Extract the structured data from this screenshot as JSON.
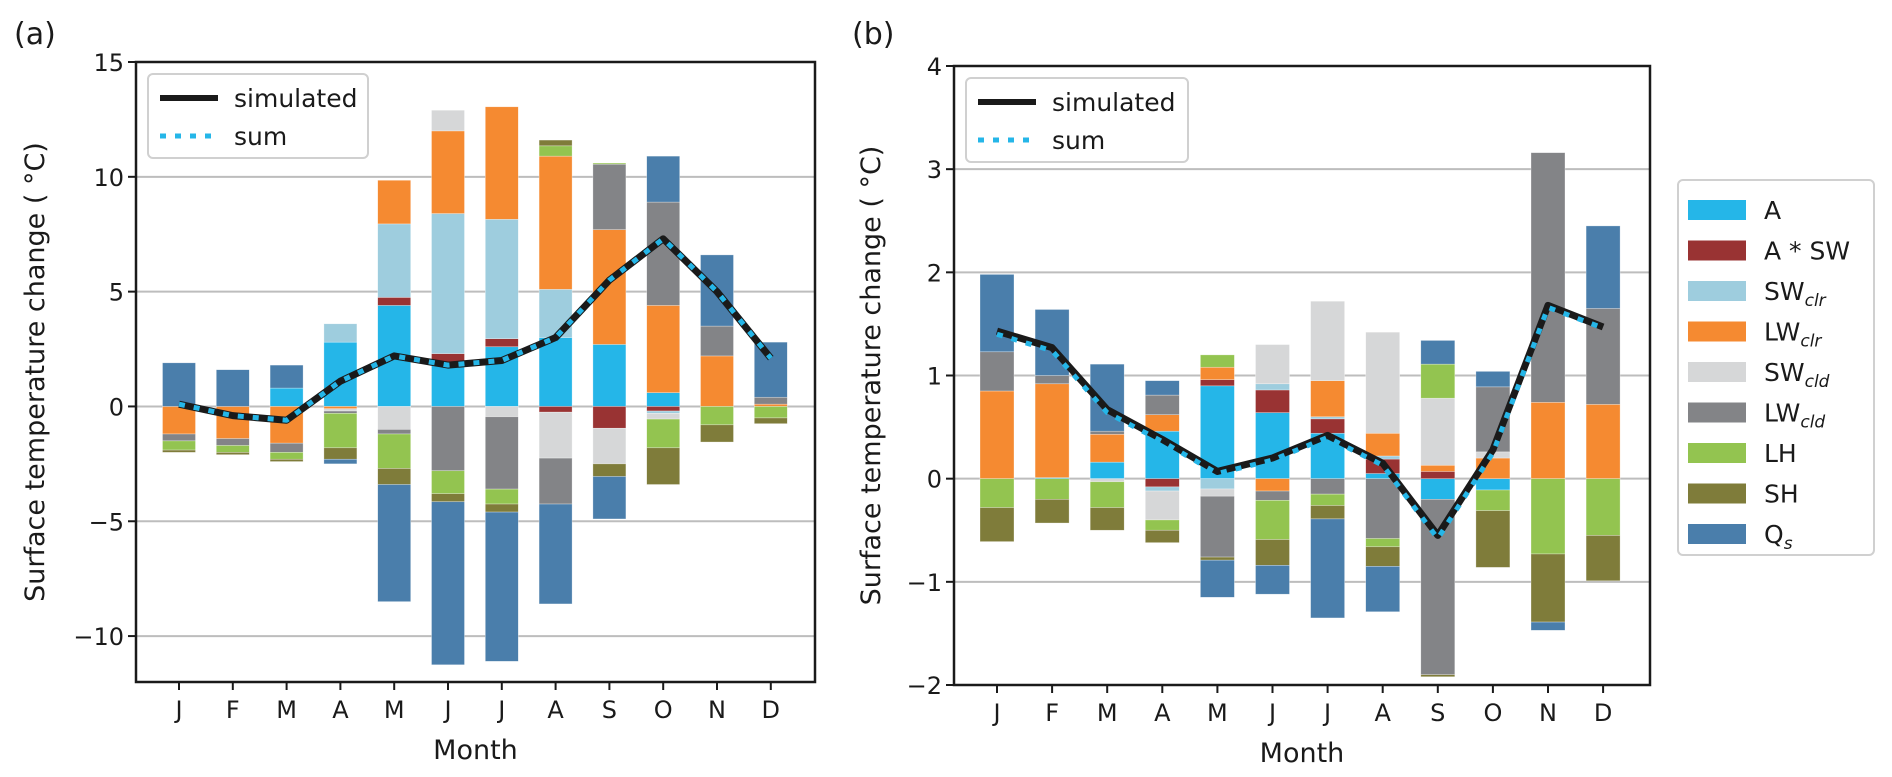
{
  "chart_data": [
    {
      "type": "bar",
      "stacked": true,
      "panel_label": "(a)",
      "xlabel": "Month",
      "ylabel": "Surface temperature change ( °C)",
      "ylim": [
        -12,
        15
      ],
      "yticks": [
        -10,
        -5,
        0,
        5,
        10,
        15
      ],
      "ytick_labels": [
        "−10",
        "−5",
        "0",
        "5",
        "10",
        "15"
      ],
      "grid": "horizontal",
      "categories": [
        "J",
        "F",
        "M",
        "A",
        "M",
        "J",
        "J",
        "A",
        "S",
        "O",
        "N",
        "D"
      ],
      "line_legend": {
        "placement": "top-left",
        "entries": [
          "simulated",
          "sum"
        ]
      },
      "series": [
        {
          "name": "A",
          "values": [
            0,
            0,
            0.8,
            2.8,
            4.4,
            1.9,
            2.6,
            3.0,
            2.7,
            0.6,
            0,
            0
          ]
        },
        {
          "name": "A * SW",
          "values": [
            0,
            0,
            0,
            0,
            0.35,
            0.4,
            0.35,
            -0.25,
            -0.95,
            -0.2,
            0,
            0
          ]
        },
        {
          "name": "SWclr",
          "values": [
            0,
            0,
            0,
            0.8,
            3.2,
            6.1,
            5.2,
            2.1,
            0,
            -0.1,
            0,
            0
          ]
        },
        {
          "name": "LWclr",
          "values": [
            -1.2,
            -1.4,
            -1.6,
            -0.1,
            1.9,
            3.6,
            4.9,
            5.8,
            5.0,
            3.8,
            2.2,
            0.1
          ]
        },
        {
          "name": "SWcld",
          "values": [
            0,
            0,
            0,
            -0.1,
            -1.0,
            0.9,
            -0.45,
            -2.0,
            -1.55,
            -0.25,
            0,
            0
          ]
        },
        {
          "name": "LWcld",
          "values": [
            -0.3,
            -0.3,
            -0.4,
            -0.1,
            -0.2,
            -2.8,
            -3.15,
            -2.0,
            2.85,
            4.5,
            1.3,
            0.3
          ]
        },
        {
          "name": "LH",
          "values": [
            -0.4,
            -0.3,
            -0.3,
            -1.5,
            -1.5,
            -1.0,
            -0.65,
            0.45,
            0.05,
            -1.25,
            -0.8,
            -0.5
          ]
        },
        {
          "name": "SH",
          "values": [
            -0.1,
            -0.1,
            -0.1,
            -0.5,
            -0.7,
            -0.35,
            -0.35,
            0.25,
            -0.55,
            -1.6,
            -0.75,
            -0.25
          ]
        },
        {
          "name": "Qs",
          "values": [
            1.9,
            1.6,
            1.0,
            -0.2,
            -5.1,
            -7.1,
            -6.5,
            -4.35,
            -1.85,
            2.0,
            3.1,
            2.4
          ]
        }
      ],
      "lines": [
        {
          "name": "simulated",
          "values": [
            0.1,
            -0.4,
            -0.6,
            1.1,
            2.2,
            1.8,
            2.0,
            3.0,
            5.5,
            7.3,
            5.0,
            2.1
          ]
        },
        {
          "name": "sum",
          "values": [
            0.1,
            -0.4,
            -0.6,
            1.1,
            2.2,
            1.8,
            2.0,
            3.0,
            5.5,
            7.3,
            5.0,
            2.1
          ]
        }
      ]
    },
    {
      "type": "bar",
      "stacked": true,
      "panel_label": "(b)",
      "xlabel": "Month",
      "ylabel": "Surface temperature change ( °C)",
      "ylim": [
        -2,
        4
      ],
      "yticks": [
        -2,
        -1,
        0,
        1,
        2,
        3,
        4
      ],
      "ytick_labels": [
        "−2",
        "−1",
        "0",
        "1",
        "2",
        "3",
        "4"
      ],
      "grid": "horizontal",
      "categories": [
        "J",
        "F",
        "M",
        "A",
        "M",
        "J",
        "J",
        "A",
        "S",
        "O",
        "N",
        "D"
      ],
      "line_legend": {
        "placement": "top-left",
        "entries": [
          "simulated",
          "sum"
        ]
      },
      "series": [
        {
          "name": "A",
          "values": [
            0,
            0.01,
            0.16,
            0.46,
            0.9,
            0.64,
            0.44,
            0.05,
            -0.2,
            -0.11,
            0,
            0
          ]
        },
        {
          "name": "A * SW",
          "values": [
            0,
            0,
            0,
            -0.08,
            0.06,
            0.22,
            0.14,
            0.14,
            0.07,
            0,
            0,
            0
          ]
        },
        {
          "name": "SWclr",
          "values": [
            0,
            0,
            0,
            -0.04,
            -0.1,
            0.06,
            0.02,
            0.03,
            0,
            0,
            0,
            0
          ]
        },
        {
          "name": "LWclr",
          "values": [
            0.85,
            0.91,
            0.27,
            0.16,
            0.12,
            -0.12,
            0.35,
            0.22,
            0.06,
            0.2,
            0.74,
            0.72
          ]
        },
        {
          "name": "SWcld",
          "values": [
            0,
            0,
            -0.03,
            -0.28,
            -0.07,
            0.38,
            0.77,
            0.98,
            0.65,
            0.06,
            0,
            0
          ]
        },
        {
          "name": "LWcld",
          "values": [
            0.38,
            0.08,
            0.03,
            0.19,
            -0.59,
            -0.09,
            -0.15,
            -0.58,
            -1.7,
            0.63,
            2.42,
            0.93
          ]
        },
        {
          "name": "LH",
          "values": [
            -0.28,
            -0.2,
            -0.25,
            -0.1,
            0.12,
            -0.38,
            -0.11,
            -0.08,
            0.33,
            -0.2,
            -0.73,
            -0.55
          ]
        },
        {
          "name": "SH",
          "values": [
            -0.33,
            -0.23,
            -0.22,
            -0.12,
            -0.03,
            -0.25,
            -0.13,
            -0.19,
            -0.02,
            -0.55,
            -0.66,
            -0.44
          ]
        },
        {
          "name": "Qs",
          "values": [
            0.75,
            0.64,
            0.65,
            0.14,
            -0.36,
            -0.28,
            -0.96,
            -0.44,
            0.23,
            0.15,
            -0.08,
            0.8
          ]
        }
      ],
      "lines": [
        {
          "name": "simulated",
          "values": [
            1.43,
            1.27,
            0.67,
            0.38,
            0.07,
            0.2,
            0.42,
            0.15,
            -0.55,
            0.28,
            1.68,
            1.47
          ]
        },
        {
          "name": "sum",
          "values": [
            1.4,
            1.24,
            0.64,
            0.36,
            0.05,
            0.18,
            0.4,
            0.13,
            -0.58,
            0.25,
            1.66,
            1.46
          ]
        }
      ]
    }
  ],
  "legend": {
    "placement": "right",
    "entries": [
      {
        "key": "A",
        "label": "A",
        "sub": "",
        "color": "#25b6e8"
      },
      {
        "key": "A * SW",
        "label": "A * SW",
        "sub": "",
        "color": "#993333"
      },
      {
        "key": "SWclr",
        "label": "SW",
        "sub": "clr",
        "color": "#9ecdde"
      },
      {
        "key": "LWclr",
        "label": "LW",
        "sub": "clr",
        "color": "#f58a31"
      },
      {
        "key": "SWcld",
        "label": "SW",
        "sub": "cld",
        "color": "#d6d7d8"
      },
      {
        "key": "LWcld",
        "label": "LW",
        "sub": "cld",
        "color": "#838487"
      },
      {
        "key": "LH",
        "label": "LH",
        "sub": "",
        "color": "#93c450"
      },
      {
        "key": "SH",
        "label": "SH",
        "sub": "",
        "color": "#7f7c3a"
      },
      {
        "key": "Qs",
        "label": "Q",
        "sub": "s",
        "color": "#4a7eab"
      }
    ]
  },
  "line_styles": {
    "simulated": {
      "color": "#1a1a1a"
    },
    "sum": {
      "color": "#25b6e8"
    }
  }
}
